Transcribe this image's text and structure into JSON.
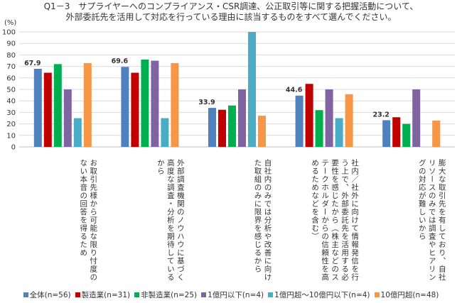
{
  "title_lines": [
    "Q1－3　サプライヤーへのコンプライアンス・CSR調達、公正取引等に関する把握活動について、",
    "外部委託先を活用して対応を行っている理由に該当するものをすべて選んでください。"
  ],
  "chart_data": {
    "type": "bar",
    "yunit": "(%)",
    "ylim": [
      0,
      100
    ],
    "yticks": [
      0,
      10,
      20,
      30,
      40,
      50,
      60,
      70,
      80,
      90,
      100
    ],
    "grid": true,
    "legend_position": "bottom",
    "categories": [
      "お取引先様から可能な限り忖度の\nない本音の回答を得るため",
      "外部調査機関のノウハウに基づく\n高度な調査・分析を期待している\nから",
      "自社内のみでは分析や改善に向け\nた取組のみに限界を感じるから",
      "社内／社外に向けて情報発信を行\nう上で、外部委託先を活用する必\n要性を感じたから（株主などのス\nテークホルダーからの信頼性を高\nめるためなどを含む）",
      "膨大な取引先を有しており、自社\nリソースのみでは調査やヒアリン\nグの対応が難しいから"
    ],
    "series": [
      {
        "name": "全体(n=56)",
        "color": "#4F81BD",
        "values": [
          67.9,
          69.6,
          33.9,
          44.6,
          23.2
        ],
        "labels": [
          "67.9",
          "69.6",
          "33.9",
          "44.6",
          "23.2"
        ]
      },
      {
        "name": "製造業(n=31)",
        "color": "#C00000",
        "values": [
          64.5,
          64.5,
          32.3,
          54.8,
          25.8
        ]
      },
      {
        "name": "非製造業(n=25)",
        "color": "#00B050",
        "values": [
          72.0,
          76.0,
          36.0,
          32.0,
          20.0
        ]
      },
      {
        "name": "1億円以下(n=4)",
        "color": "#8064A2",
        "values": [
          50.0,
          75.0,
          50.0,
          50.0,
          50.0
        ]
      },
      {
        "name": "1億円超～10億円以下(n=4)",
        "color": "#4BACC6",
        "values": [
          25.0,
          25.0,
          100.0,
          25.0,
          0.0
        ]
      },
      {
        "name": "10億円超(n=48)",
        "color": "#F79646",
        "values": [
          72.9,
          72.9,
          27.1,
          45.8,
          22.9
        ]
      }
    ]
  }
}
